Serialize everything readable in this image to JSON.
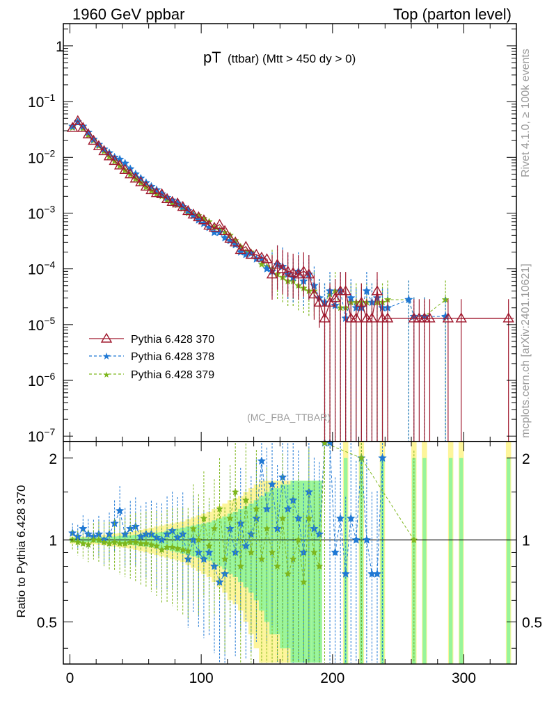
{
  "header": {
    "energy": "1960 GeV ppbar",
    "process": "Top (parton level)"
  },
  "side_labels": {
    "rivet": "Rivet 4.1.0, ≥ 100k events",
    "mcplots": "mcplots.cern.ch [arXiv:2401.10621]"
  },
  "chart_data": {
    "type": "line",
    "title_main": "pT",
    "title_sub": "(ttbar) (Mtt > 450 dy > 0)",
    "analysis_tag": "(MC_FBA_TTBAR)",
    "ratio_ylabel": "Ratio to Pythia 6.428 370",
    "xlim": [
      -5,
      340
    ],
    "x_ticks": [
      "0",
      "100",
      "200",
      "300"
    ],
    "y_ticks_main": [
      {
        "base": "1",
        "exp": ""
      },
      {
        "base": "10",
        "exp": "−1"
      },
      {
        "base": "10",
        "exp": "−2"
      },
      {
        "base": "10",
        "exp": "−3"
      },
      {
        "base": "10",
        "exp": "−4"
      },
      {
        "base": "10",
        "exp": "−5"
      },
      {
        "base": "10",
        "exp": "−6"
      },
      {
        "base": "10",
        "exp": "−7"
      }
    ],
    "ratio_ticks": [
      "2",
      "1",
      "0.5"
    ],
    "ylim_main": [
      8e-08,
      2.5
    ],
    "ylim_ratio": [
      0.35,
      2.3
    ],
    "legend": [
      {
        "name": "Pythia 6.428 370",
        "color": "#a0192e"
      },
      {
        "name": "Pythia 6.428 378",
        "color": "#1f78d4"
      },
      {
        "name": "Pythia 6.428 379",
        "color": "#7db61c"
      }
    ],
    "series": [
      {
        "name": "Pythia 6.428 370",
        "x": [
          2,
          6,
          10,
          14,
          18,
          22,
          26,
          30,
          34,
          38,
          42,
          46,
          50,
          54,
          58,
          62,
          66,
          70,
          74,
          78,
          82,
          86,
          90,
          94,
          98,
          102,
          106,
          110,
          114,
          118,
          122,
          126,
          130,
          134,
          138,
          142,
          146,
          150,
          154,
          158,
          162,
          166,
          170,
          174,
          178,
          182,
          186,
          190,
          194,
          198,
          202,
          206,
          210,
          214,
          218,
          222,
          226,
          230,
          234,
          238,
          242,
          262,
          266,
          270,
          274,
          288,
          298,
          334
        ],
        "values": [
          0.034,
          0.045,
          0.034,
          0.026,
          0.02,
          0.016,
          0.013,
          0.0105,
          0.0087,
          0.0072,
          0.006,
          0.005,
          0.0042,
          0.0036,
          0.003,
          0.0026,
          0.0023,
          0.0022,
          0.0018,
          0.0016,
          0.0015,
          0.0013,
          0.0011,
          0.00095,
          0.00085,
          0.00075,
          0.0006,
          0.00055,
          0.00062,
          0.00048,
          0.00035,
          0.0003,
          0.00022,
          0.00025,
          0.00018,
          0.00018,
          0.00016,
          0.00015,
          8e-05,
          0.00012,
          0.0001,
          9e-05,
          8.5e-05,
          8e-05,
          9e-05,
          8e-05,
          3.5e-05,
          2.5e-05,
          1.3e-05,
          2.5e-05,
          3e-05,
          4e-05,
          4e-05,
          1.3e-05,
          1.3e-05,
          2.5e-05,
          1.3e-05,
          1.3e-05,
          4e-05,
          1.3e-05,
          1.3e-05,
          1.3e-05,
          1.3e-05,
          1.3e-05,
          1.3e-05,
          1.3e-05,
          1.3e-05,
          1.3e-05
        ]
      },
      {
        "name": "Pythia 6.428 378",
        "x": [
          2,
          6,
          10,
          14,
          18,
          22,
          26,
          30,
          34,
          38,
          42,
          46,
          50,
          54,
          58,
          62,
          66,
          70,
          74,
          78,
          82,
          86,
          90,
          94,
          98,
          102,
          106,
          110,
          114,
          118,
          122,
          126,
          130,
          134,
          138,
          142,
          146,
          150,
          154,
          158,
          162,
          166,
          170,
          174,
          178,
          182,
          186,
          190,
          194,
          198,
          202,
          206,
          210,
          214,
          218,
          222,
          226,
          230,
          234,
          238,
          242,
          258,
          262,
          270,
          286
        ],
        "values": [
          0.036,
          0.043,
          0.036,
          0.028,
          0.021,
          0.017,
          0.014,
          0.012,
          0.01,
          0.0092,
          0.0078,
          0.0062,
          0.005,
          0.0042,
          0.0035,
          0.003,
          0.0026,
          0.0022,
          0.0019,
          0.0017,
          0.0015,
          0.0013,
          0.0011,
          0.0009,
          0.00075,
          0.00065,
          0.00055,
          0.00045,
          0.00045,
          0.00036,
          0.00032,
          0.00027,
          0.0002,
          0.00018,
          0.00019,
          0.00015,
          0.00015,
          0.0001,
          9e-05,
          0.00012,
          0.00011,
          8e-05,
          7e-05,
          9e-05,
          6e-05,
          8e-05,
          5e-05,
          3e-05,
          2.5e-05,
          4e-05,
          2.2e-05,
          4e-05,
          1.3e-05,
          3e-05,
          2e-05,
          2e-05,
          4e-05,
          2.5e-05,
          3e-05,
          2e-05,
          2e-05,
          2.8e-05,
          1.4e-05,
          1.4e-05,
          1.4e-05
        ]
      },
      {
        "name": "Pythia 6.428 379",
        "x": [
          2,
          6,
          10,
          14,
          18,
          22,
          26,
          30,
          34,
          38,
          42,
          46,
          50,
          54,
          58,
          62,
          66,
          70,
          74,
          78,
          82,
          86,
          90,
          94,
          98,
          102,
          106,
          110,
          114,
          118,
          122,
          126,
          130,
          134,
          138,
          142,
          146,
          150,
          154,
          158,
          162,
          166,
          170,
          174,
          178,
          182,
          186,
          190,
          194,
          198,
          202,
          206,
          210,
          214,
          218,
          222,
          226,
          230,
          234,
          238,
          242,
          258,
          262,
          270,
          286
        ],
        "values": [
          0.034,
          0.044,
          0.033,
          0.025,
          0.02,
          0.016,
          0.0128,
          0.0102,
          0.0085,
          0.007,
          0.0058,
          0.0049,
          0.0041,
          0.0035,
          0.0029,
          0.0025,
          0.0022,
          0.002,
          0.0017,
          0.0015,
          0.0014,
          0.0012,
          0.001,
          0.00095,
          0.0009,
          0.0008,
          0.0007,
          0.00055,
          0.0005,
          0.00045,
          0.0004,
          0.00032,
          0.00025,
          0.0002,
          0.0002,
          0.00015,
          0.00012,
          0.00011,
          0.0001,
          8e-05,
          7e-05,
          6e-05,
          6e-05,
          5e-05,
          4.5e-05,
          4e-05,
          4e-05,
          3e-05,
          2.5e-05,
          3.5e-05,
          4e-05,
          2e-05,
          2e-05,
          2.5e-05,
          2.5e-05,
          2.5e-05,
          2.5e-05,
          2.5e-05,
          2.5e-05,
          2.5e-05,
          2.8e-05,
          2.8e-05,
          1.4e-05,
          1.4e-05,
          2.8e-05
        ]
      }
    ],
    "ratio_series": [
      {
        "name": "Pythia 6.428 378",
        "x": [
          2,
          6,
          10,
          14,
          18,
          22,
          26,
          30,
          34,
          38,
          42,
          46,
          50,
          54,
          58,
          62,
          66,
          70,
          74,
          78,
          82,
          86,
          90,
          94,
          98,
          102,
          106,
          110,
          114,
          118,
          122,
          126,
          130,
          134,
          138,
          142,
          146,
          150,
          154,
          158,
          162,
          166,
          170,
          174,
          178,
          182,
          186,
          190,
          194,
          198,
          202,
          206,
          210,
          214,
          218,
          222,
          226,
          230,
          234,
          238
        ],
        "values": [
          1.06,
          1.03,
          1.1,
          1.05,
          1.03,
          1.05,
          1.0,
          1.05,
          1.15,
          1.28,
          1.05,
          1.1,
          1.12,
          1.03,
          1.05,
          1.05,
          1.02,
          1.0,
          1.05,
          1.08,
          1.02,
          1.05,
          0.85,
          1.0,
          0.9,
          0.85,
          0.9,
          0.8,
          0.7,
          0.75,
          1.1,
          0.9,
          1.15,
          0.95,
          1.05,
          1.2,
          1.95,
          1.3,
          1.6,
          1.1,
          1.7,
          1.3,
          1.4,
          1.2,
          0.9,
          1.5,
          1.1,
          1.05,
          2.3,
          2.3,
          0.9,
          1.2,
          0.75,
          1.2,
          1.0,
          2.0,
          1.0,
          0.75,
          0.75,
          2.0
        ]
      },
      {
        "name": "Pythia 6.428 379",
        "x": [
          2,
          6,
          10,
          14,
          18,
          22,
          26,
          30,
          34,
          38,
          42,
          46,
          50,
          54,
          58,
          62,
          66,
          70,
          74,
          78,
          82,
          86,
          90,
          94,
          98,
          102,
          106,
          110,
          114,
          118,
          122,
          126,
          130,
          134,
          138,
          142,
          146,
          150,
          154,
          158,
          162,
          166,
          170,
          174,
          178,
          182,
          186,
          190,
          194,
          222,
          262
        ],
        "values": [
          1.0,
          0.98,
          0.97,
          0.96,
          1.0,
          1.0,
          0.98,
          0.97,
          0.98,
          0.97,
          0.97,
          0.98,
          0.98,
          0.97,
          0.97,
          0.96,
          0.95,
          0.92,
          0.94,
          0.94,
          0.93,
          0.92,
          0.91,
          1.1,
          1.0,
          1.2,
          0.95,
          1.1,
          1.3,
          0.85,
          1.2,
          1.5,
          0.8,
          1.4,
          0.9,
          1.3,
          0.85,
          1.1,
          0.9,
          0.8,
          1.2,
          0.75,
          0.85,
          1.0,
          0.7,
          1.2,
          0.9,
          0.8,
          2.3,
          2.0,
          1.0
        ]
      }
    ],
    "uncertainty_band": {
      "x_edges": [
        0,
        4,
        8,
        12,
        16,
        20,
        24,
        28,
        32,
        36,
        40,
        44,
        48,
        52,
        56,
        60,
        64,
        68,
        72,
        76,
        80,
        84,
        88,
        92,
        96,
        100,
        104,
        108,
        112,
        116,
        120,
        124,
        128,
        132,
        136,
        140,
        144,
        148,
        152,
        156,
        160,
        164,
        168,
        172,
        176,
        180,
        184,
        188,
        192
      ],
      "halfwidth_outer": [
        0.03,
        0.03,
        0.03,
        0.03,
        0.035,
        0.04,
        0.045,
        0.05,
        0.055,
        0.06,
        0.065,
        0.07,
        0.08,
        0.09,
        0.1,
        0.11,
        0.12,
        0.13,
        0.14,
        0.15,
        0.16,
        0.17,
        0.19,
        0.21,
        0.23,
        0.25,
        0.27,
        0.3,
        0.33,
        0.36,
        0.4,
        0.42,
        0.45,
        0.5,
        0.55,
        0.6,
        0.65,
        0.65,
        0.65,
        0.65,
        0.65,
        0.65,
        0.65,
        0.65,
        0.65,
        0.65,
        0.65,
        0.65
      ],
      "halfwidth_inner": [
        0.02,
        0.02,
        0.02,
        0.02,
        0.02,
        0.025,
        0.025,
        0.03,
        0.03,
        0.035,
        0.04,
        0.04,
        0.045,
        0.05,
        0.055,
        0.06,
        0.065,
        0.07,
        0.08,
        0.09,
        0.1,
        0.11,
        0.12,
        0.13,
        0.14,
        0.15,
        0.16,
        0.18,
        0.2,
        0.22,
        0.25,
        0.27,
        0.3,
        0.33,
        0.36,
        0.4,
        0.45,
        0.5,
        0.55,
        0.55,
        0.6,
        0.6,
        0.65,
        0.65,
        0.65,
        0.65,
        0.65,
        0.65
      ],
      "spikes_x": [
        210,
        222,
        238,
        262,
        270,
        290,
        298,
        334
      ],
      "colors": {
        "outer": "#fdf59a",
        "inner": "#98f59a"
      }
    }
  }
}
